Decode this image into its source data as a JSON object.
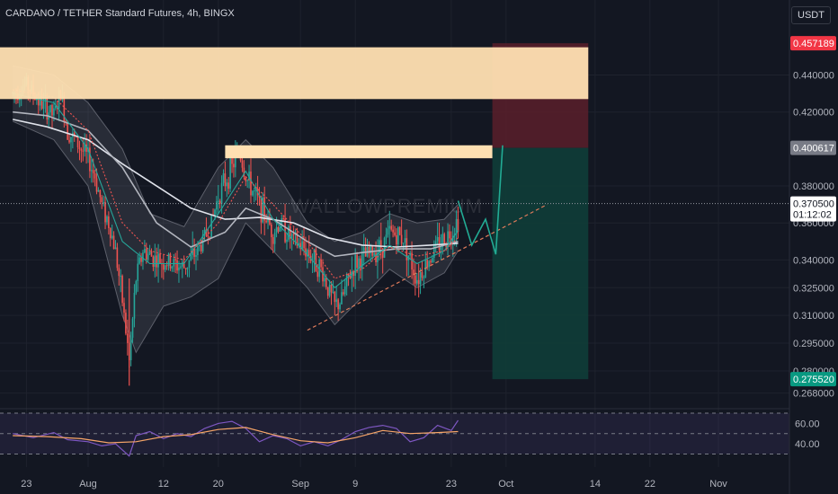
{
  "header": {
    "symbol_title": "CARDANO / TETHER Standard Futures, 4h, BINGX",
    "currency": "USDT"
  },
  "watermark": "WALLOWPREMIUM",
  "colors": {
    "background": "#131722",
    "candle_up": "#26a69a",
    "candle_down": "#ef5350",
    "zone": "#ffe0b2",
    "stop_area": "#5b1f2a",
    "target_area": "#0f3d39",
    "projection": "#22ab94",
    "trendline": "#e07b5b"
  },
  "chart_data": [
    {
      "type": "candlestick",
      "y_axis": {
        "scale": "linear",
        "range": [
          0.262,
          0.466
        ],
        "ticks": [
          "0.440000",
          "0.420000",
          "0.380000",
          "0.360000",
          "0.340000",
          "0.325000",
          "0.310000",
          "0.295000",
          "0.280000",
          "0.268000"
        ],
        "tick_values": [
          0.44,
          0.42,
          0.38,
          0.36,
          0.34,
          0.325,
          0.31,
          0.295,
          0.28,
          0.268
        ]
      },
      "x_axis": {
        "ticks": [
          "23",
          "Aug",
          "12",
          "20",
          "Sep",
          "9",
          "23",
          "Oct",
          "14",
          "22",
          "Nov"
        ],
        "tick_days": [
          -9,
          0,
          11,
          19,
          31,
          39,
          53,
          61,
          74,
          82,
          92
        ],
        "unit": "days since Aug 1"
      },
      "price_labels": [
        {
          "value": 0.457189,
          "text": "0.457189",
          "color": "#f23645"
        },
        {
          "value": 0.400617,
          "text": "0.400617",
          "color": "#787b86"
        },
        {
          "value": 0.3705,
          "text": "0.370500",
          "sub": "01:12:02",
          "color": "#ffffff"
        },
        {
          "value": 0.27552,
          "text": "0.275520",
          "color": "#089981"
        }
      ],
      "current_price": 0.3705,
      "price_path": [
        {
          "d": -11,
          "p": 0.43
        },
        {
          "d": -9,
          "p": 0.435
        },
        {
          "d": -7,
          "p": 0.425
        },
        {
          "d": -5,
          "p": 0.418
        },
        {
          "d": -4,
          "p": 0.43
        },
        {
          "d": -3,
          "p": 0.41
        },
        {
          "d": -2,
          "p": 0.405
        },
        {
          "d": 0,
          "p": 0.395
        },
        {
          "d": 1,
          "p": 0.385
        },
        {
          "d": 2,
          "p": 0.37
        },
        {
          "d": 3,
          "p": 0.36
        },
        {
          "d": 4,
          "p": 0.345
        },
        {
          "d": 5,
          "p": 0.318
        },
        {
          "d": 6,
          "p": 0.285
        },
        {
          "d": 7,
          "p": 0.33
        },
        {
          "d": 8,
          "p": 0.345
        },
        {
          "d": 10,
          "p": 0.34
        },
        {
          "d": 12,
          "p": 0.338
        },
        {
          "d": 14,
          "p": 0.336
        },
        {
          "d": 16,
          "p": 0.345
        },
        {
          "d": 18,
          "p": 0.36
        },
        {
          "d": 19,
          "p": 0.375
        },
        {
          "d": 21,
          "p": 0.39
        },
        {
          "d": 22,
          "p": 0.4
        },
        {
          "d": 23,
          "p": 0.385
        },
        {
          "d": 25,
          "p": 0.37
        },
        {
          "d": 27,
          "p": 0.355
        },
        {
          "d": 28,
          "p": 0.36
        },
        {
          "d": 30,
          "p": 0.35
        },
        {
          "d": 32,
          "p": 0.345
        },
        {
          "d": 34,
          "p": 0.335
        },
        {
          "d": 35,
          "p": 0.325
        },
        {
          "d": 36,
          "p": 0.315
        },
        {
          "d": 37,
          "p": 0.318
        },
        {
          "d": 38,
          "p": 0.33
        },
        {
          "d": 39,
          "p": 0.338
        },
        {
          "d": 41,
          "p": 0.343
        },
        {
          "d": 43,
          "p": 0.348
        },
        {
          "d": 44,
          "p": 0.355
        },
        {
          "d": 46,
          "p": 0.352
        },
        {
          "d": 47,
          "p": 0.34
        },
        {
          "d": 48,
          "p": 0.33
        },
        {
          "d": 49,
          "p": 0.336
        },
        {
          "d": 51,
          "p": 0.348
        },
        {
          "d": 53,
          "p": 0.355
        },
        {
          "d": 54,
          "p": 0.362
        }
      ],
      "moving_averages": [
        {
          "color": "#e0e3eb",
          "path": [
            {
              "d": -11,
              "p": 0.416
            },
            {
              "d": -6,
              "p": 0.412
            },
            {
              "d": 0,
              "p": 0.405
            },
            {
              "d": 5,
              "p": 0.392
            },
            {
              "d": 10,
              "p": 0.38
            },
            {
              "d": 15,
              "p": 0.368
            },
            {
              "d": 20,
              "p": 0.362
            },
            {
              "d": 25,
              "p": 0.363
            },
            {
              "d": 30,
              "p": 0.36
            },
            {
              "d": 35,
              "p": 0.352
            },
            {
              "d": 40,
              "p": 0.348
            },
            {
              "d": 45,
              "p": 0.347
            },
            {
              "d": 50,
              "p": 0.348
            },
            {
              "d": 54,
              "p": 0.349
            }
          ]
        },
        {
          "color": "#b2b5be",
          "path": [
            {
              "d": -11,
              "p": 0.42
            },
            {
              "d": -6,
              "p": 0.418
            },
            {
              "d": 0,
              "p": 0.41
            },
            {
              "d": 5,
              "p": 0.39
            },
            {
              "d": 10,
              "p": 0.36
            },
            {
              "d": 15,
              "p": 0.347
            },
            {
              "d": 20,
              "p": 0.355
            },
            {
              "d": 23,
              "p": 0.368
            },
            {
              "d": 27,
              "p": 0.362
            },
            {
              "d": 32,
              "p": 0.35
            },
            {
              "d": 36,
              "p": 0.342
            },
            {
              "d": 40,
              "p": 0.344
            },
            {
              "d": 45,
              "p": 0.346
            },
            {
              "d": 50,
              "p": 0.346
            },
            {
              "d": 54,
              "p": 0.35
            }
          ]
        },
        {
          "color": "#26a69a",
          "path": [
            {
              "d": -11,
              "p": 0.43
            },
            {
              "d": -5,
              "p": 0.425
            },
            {
              "d": 0,
              "p": 0.4
            },
            {
              "d": 5,
              "p": 0.35
            },
            {
              "d": 9,
              "p": 0.338
            },
            {
              "d": 14,
              "p": 0.338
            },
            {
              "d": 19,
              "p": 0.365
            },
            {
              "d": 23,
              "p": 0.388
            },
            {
              "d": 27,
              "p": 0.362
            },
            {
              "d": 32,
              "p": 0.343
            },
            {
              "d": 36,
              "p": 0.325
            },
            {
              "d": 40,
              "p": 0.337
            },
            {
              "d": 44,
              "p": 0.348
            },
            {
              "d": 48,
              "p": 0.338
            },
            {
              "d": 52,
              "p": 0.345
            },
            {
              "d": 54,
              "p": 0.356
            }
          ]
        },
        {
          "color": "#ef5350",
          "path": [
            {
              "d": -11,
              "p": 0.432
            },
            {
              "d": -5,
              "p": 0.428
            },
            {
              "d": 0,
              "p": 0.41
            },
            {
              "d": 5,
              "p": 0.36
            },
            {
              "d": 9,
              "p": 0.345
            },
            {
              "d": 14,
              "p": 0.34
            },
            {
              "d": 19,
              "p": 0.36
            },
            {
              "d": 23,
              "p": 0.385
            },
            {
              "d": 27,
              "p": 0.37
            },
            {
              "d": 32,
              "p": 0.35
            },
            {
              "d": 36,
              "p": 0.33
            },
            {
              "d": 40,
              "p": 0.335
            },
            {
              "d": 44,
              "p": 0.347
            },
            {
              "d": 48,
              "p": 0.342
            },
            {
              "d": 52,
              "p": 0.345
            },
            {
              "d": 54,
              "p": 0.352
            }
          ]
        }
      ],
      "bollinger_upper": [
        {
          "d": -11,
          "p": 0.445
        },
        {
          "d": -5,
          "p": 0.44
        },
        {
          "d": 0,
          "p": 0.425
        },
        {
          "d": 5,
          "p": 0.4
        },
        {
          "d": 9,
          "p": 0.365
        },
        {
          "d": 14,
          "p": 0.358
        },
        {
          "d": 19,
          "p": 0.39
        },
        {
          "d": 23,
          "p": 0.405
        },
        {
          "d": 27,
          "p": 0.39
        },
        {
          "d": 32,
          "p": 0.36
        },
        {
          "d": 36,
          "p": 0.35
        },
        {
          "d": 40,
          "p": 0.355
        },
        {
          "d": 44,
          "p": 0.365
        },
        {
          "d": 48,
          "p": 0.36
        },
        {
          "d": 52,
          "p": 0.362
        },
        {
          "d": 54,
          "p": 0.37
        }
      ],
      "bollinger_lower": [
        {
          "d": -11,
          "p": 0.415
        },
        {
          "d": -5,
          "p": 0.405
        },
        {
          "d": 0,
          "p": 0.38
        },
        {
          "d": 5,
          "p": 0.31
        },
        {
          "d": 7,
          "p": 0.29
        },
        {
          "d": 11,
          "p": 0.315
        },
        {
          "d": 15,
          "p": 0.32
        },
        {
          "d": 19,
          "p": 0.33
        },
        {
          "d": 23,
          "p": 0.36
        },
        {
          "d": 27,
          "p": 0.345
        },
        {
          "d": 32,
          "p": 0.325
        },
        {
          "d": 36,
          "p": 0.305
        },
        {
          "d": 40,
          "p": 0.32
        },
        {
          "d": 44,
          "p": 0.335
        },
        {
          "d": 48,
          "p": 0.325
        },
        {
          "d": 52,
          "p": 0.333
        },
        {
          "d": 54,
          "p": 0.345
        }
      ],
      "drawings": {
        "zones": [
          {
            "top": 0.455,
            "bottom": 0.427,
            "d_start": -14,
            "d_end": 73
          },
          {
            "top": 0.402,
            "bottom": 0.395,
            "d_start": 20,
            "d_end": 59
          }
        ],
        "position": {
          "d_start": 59,
          "d_end": 73,
          "stop": 0.457189,
          "entry": 0.400617,
          "target": 0.27552
        },
        "projection": [
          {
            "d": 54,
            "p": 0.372
          },
          {
            "d": 56,
            "p": 0.348
          },
          {
            "d": 58,
            "p": 0.362
          },
          {
            "d": 59.5,
            "p": 0.343
          },
          {
            "d": 60.5,
            "p": 0.402
          }
        ],
        "trendline": {
          "from": {
            "d": 32,
            "p": 0.302
          },
          "to": {
            "d": 67,
            "p": 0.37
          }
        }
      }
    },
    {
      "type": "line",
      "name": "RSI",
      "y_axis": {
        "ticks": [
          "60.00",
          "40.00"
        ],
        "tick_values": [
          60,
          40
        ],
        "range": [
          26,
          70
        ]
      },
      "bands": [
        70,
        50,
        30
      ],
      "rsi_path": [
        {
          "d": -11,
          "v": 50
        },
        {
          "d": -8,
          "v": 46
        },
        {
          "d": -5,
          "v": 51
        },
        {
          "d": -3,
          "v": 44
        },
        {
          "d": 0,
          "v": 42
        },
        {
          "d": 2,
          "v": 38
        },
        {
          "d": 4,
          "v": 40
        },
        {
          "d": 5,
          "v": 34
        },
        {
          "d": 6,
          "v": 28
        },
        {
          "d": 7,
          "v": 48
        },
        {
          "d": 9,
          "v": 52
        },
        {
          "d": 11,
          "v": 45
        },
        {
          "d": 13,
          "v": 50
        },
        {
          "d": 15,
          "v": 47
        },
        {
          "d": 17,
          "v": 55
        },
        {
          "d": 19,
          "v": 60
        },
        {
          "d": 21,
          "v": 62
        },
        {
          "d": 23,
          "v": 55
        },
        {
          "d": 25,
          "v": 42
        },
        {
          "d": 27,
          "v": 48
        },
        {
          "d": 29,
          "v": 45
        },
        {
          "d": 31,
          "v": 38
        },
        {
          "d": 33,
          "v": 42
        },
        {
          "d": 35,
          "v": 38
        },
        {
          "d": 37,
          "v": 44
        },
        {
          "d": 39,
          "v": 52
        },
        {
          "d": 41,
          "v": 56
        },
        {
          "d": 43,
          "v": 58
        },
        {
          "d": 45,
          "v": 55
        },
        {
          "d": 47,
          "v": 42
        },
        {
          "d": 49,
          "v": 46
        },
        {
          "d": 51,
          "v": 58
        },
        {
          "d": 53,
          "v": 53
        },
        {
          "d": 54,
          "v": 63
        }
      ],
      "rsi_ma_path": [
        {
          "d": -11,
          "v": 48
        },
        {
          "d": -6,
          "v": 47
        },
        {
          "d": -1,
          "v": 45
        },
        {
          "d": 3,
          "v": 41
        },
        {
          "d": 7,
          "v": 42
        },
        {
          "d": 11,
          "v": 47
        },
        {
          "d": 15,
          "v": 49
        },
        {
          "d": 19,
          "v": 54
        },
        {
          "d": 23,
          "v": 56
        },
        {
          "d": 27,
          "v": 49
        },
        {
          "d": 31,
          "v": 43
        },
        {
          "d": 35,
          "v": 41
        },
        {
          "d": 39,
          "v": 46
        },
        {
          "d": 43,
          "v": 53
        },
        {
          "d": 47,
          "v": 50
        },
        {
          "d": 51,
          "v": 51
        },
        {
          "d": 54,
          "v": 52
        }
      ]
    }
  ]
}
